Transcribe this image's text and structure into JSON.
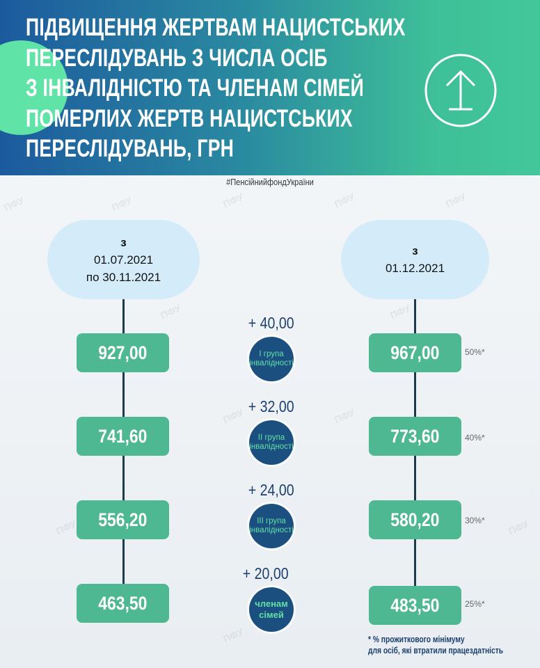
{
  "header": {
    "title_lines": [
      "ПІДВИЩЕННЯ ЖЕРТВАМ НАЦИСТСЬКИХ",
      "ПЕРЕСЛІДУВАНЬ З ЧИСЛА ОСІБ",
      "З ІНВАЛІДНІСТЮ ТА ЧЛЕНАМ СІМЕЙ",
      "ПОМЕРЛИХ ЖЕРТВ НАЦИСТСЬКИХ",
      "ПЕРЕСЛІДУВАНЬ, ГРН"
    ],
    "icon": "arrow-up-circle-icon"
  },
  "hashtag": "#ПенсійнийфондУкраїни",
  "watermark": "ПФУ",
  "left_period": {
    "line1": "з",
    "line2": "01.07.2021",
    "line3": "по 30.11.2021"
  },
  "right_period": {
    "line1": "з",
    "line2": "01.12.2021"
  },
  "rows": [
    {
      "old": "927,00",
      "increase": "+ 40,00",
      "group": [
        "І група",
        "інвалідності"
      ],
      "new": "967,00",
      "percent": "50%*"
    },
    {
      "old": "741,60",
      "increase": "+ 32,00",
      "group": [
        "ІІ група",
        "інвалідності"
      ],
      "new": "773,60",
      "percent": "40%*"
    },
    {
      "old": "556,20",
      "increase": "+ 24,00",
      "group": [
        "ІІІ група",
        "інвалідності"
      ],
      "new": "580,20",
      "percent": "30%*"
    },
    {
      "old": "463,50",
      "increase": "+ 20,00",
      "group": [
        "членам",
        "сімей"
      ],
      "new": "483,50",
      "percent": "25%*"
    }
  ],
  "footnote": {
    "line1": "* % прожиткового мінімуму",
    "line2": "для осіб, які втратили працездатність"
  },
  "colors": {
    "header_start": "#1c5a9e",
    "header_end": "#42c79a",
    "value_box": "#4db892",
    "group_circle": "#1b4f80",
    "period_pill": "#d4ecf9"
  }
}
